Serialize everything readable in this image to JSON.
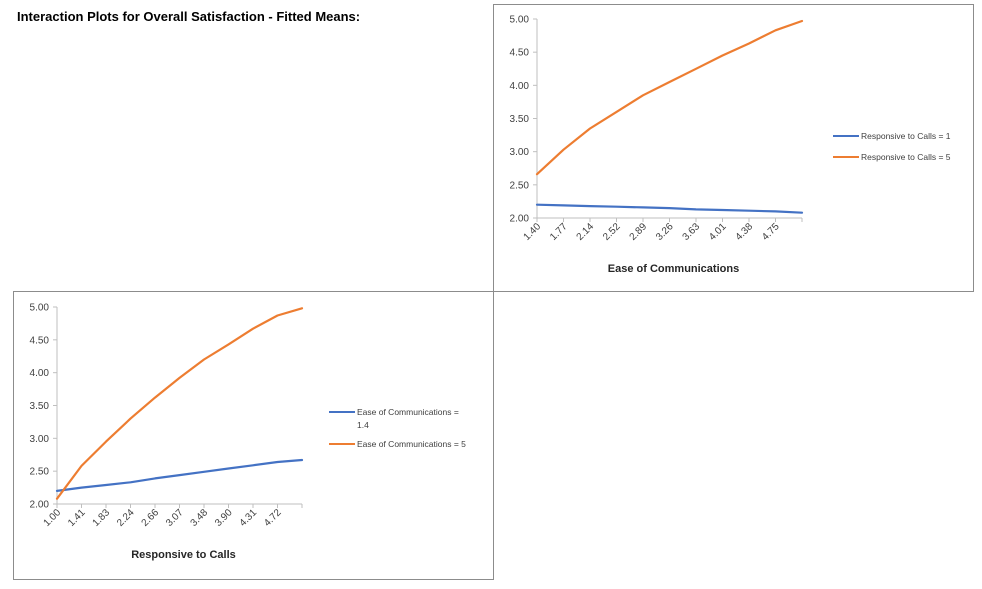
{
  "page": {
    "title": "Interaction Plots for Overall Satisfaction - Fitted Means:"
  },
  "chart_data": [
    {
      "id": "chart1",
      "type": "line",
      "title": "",
      "xlabel": "Ease of Communications",
      "ylabel": "",
      "ylim": [
        2.0,
        5.0
      ],
      "y_ticks": [
        "2.00",
        "2.50",
        "3.00",
        "3.50",
        "4.00",
        "4.50",
        "5.00"
      ],
      "x_tick_labels": [
        "1.40",
        "1.77",
        "2.14",
        "2.52",
        "2.89",
        "3.26",
        "3.63",
        "4.01",
        "4.38",
        "4.75"
      ],
      "x": [
        1.4,
        1.77,
        2.14,
        2.52,
        2.89,
        3.26,
        3.63,
        4.01,
        4.38,
        4.75,
        5.0
      ],
      "grid": false,
      "legend_position": "right",
      "series": [
        {
          "name": "Responsive to Calls = 1",
          "color": "#4472C4",
          "values": [
            2.2,
            2.19,
            2.18,
            2.17,
            2.16,
            2.15,
            2.13,
            2.12,
            2.11,
            2.1,
            2.08
          ]
        },
        {
          "name": "Responsive to Calls = 5",
          "color": "#ED7D31",
          "values": [
            2.66,
            3.03,
            3.35,
            3.6,
            3.85,
            4.05,
            4.25,
            4.45,
            4.63,
            4.83,
            4.97
          ]
        }
      ]
    },
    {
      "id": "chart2",
      "type": "line",
      "title": "",
      "xlabel": "Responsive to Calls",
      "ylabel": "",
      "ylim": [
        2.0,
        5.0
      ],
      "y_ticks": [
        "2.00",
        "2.50",
        "3.00",
        "3.50",
        "4.00",
        "4.50",
        "5.00"
      ],
      "x_tick_labels": [
        "1.00",
        "1.41",
        "1.83",
        "2.24",
        "2.66",
        "3.07",
        "3.48",
        "3.90",
        "4.31",
        "4.72"
      ],
      "x": [
        1.0,
        1.41,
        1.83,
        2.24,
        2.66,
        3.07,
        3.48,
        3.9,
        4.31,
        4.72,
        5.0
      ],
      "grid": false,
      "legend_position": "right",
      "series": [
        {
          "name": "Ease of Communications = 1.4",
          "color": "#4472C4",
          "values": [
            2.2,
            2.25,
            2.29,
            2.33,
            2.39,
            2.44,
            2.49,
            2.54,
            2.59,
            2.64,
            2.67
          ]
        },
        {
          "name": "Ease of Communications = 5",
          "color": "#ED7D31",
          "values": [
            2.08,
            2.58,
            2.95,
            3.3,
            3.62,
            3.92,
            4.2,
            4.43,
            4.67,
            4.87,
            4.98
          ]
        }
      ]
    }
  ]
}
